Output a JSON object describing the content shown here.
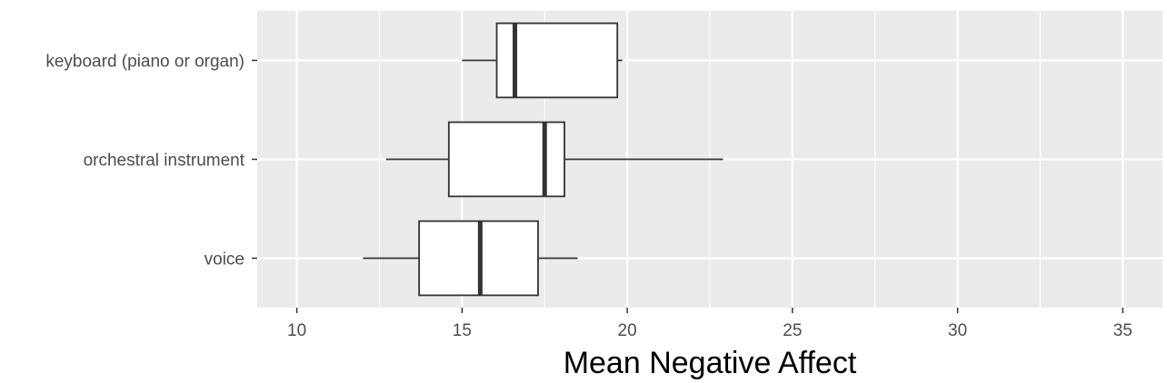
{
  "chart_data": {
    "type": "boxplot",
    "orientation": "horizontal",
    "xlabel": "Mean Negative Affect",
    "ylabel": "",
    "xlim": [
      8.8,
      36.2
    ],
    "x_ticks": [
      10,
      15,
      20,
      25,
      30,
      35
    ],
    "x_tick_labels": [
      "10",
      "15",
      "20",
      "25",
      "30",
      "35"
    ],
    "categories": [
      "voice",
      "orchestral instrument",
      "keyboard (piano or organ)"
    ],
    "boxes": [
      {
        "category": "voice",
        "whisker_low": 12.0,
        "q1": 13.7,
        "median": 15.55,
        "q3": 17.3,
        "whisker_high": 18.5
      },
      {
        "category": "orchestral instrument",
        "whisker_low": 12.7,
        "q1": 14.6,
        "median": 17.5,
        "q3": 18.1,
        "whisker_high": 22.9
      },
      {
        "category": "keyboard (piano or organ)",
        "whisker_low": 15.0,
        "q1": 16.05,
        "median": 16.6,
        "q3": 19.7,
        "whisker_high": 19.85
      }
    ],
    "grid": true,
    "legend": "none",
    "colors": {
      "panel_background": "#ebebeb",
      "grid_major": "#ffffff",
      "box_fill": "#ffffff",
      "box_stroke": "#333333",
      "tick_text": "#4d4d4d",
      "axis_title": "#000000"
    }
  }
}
